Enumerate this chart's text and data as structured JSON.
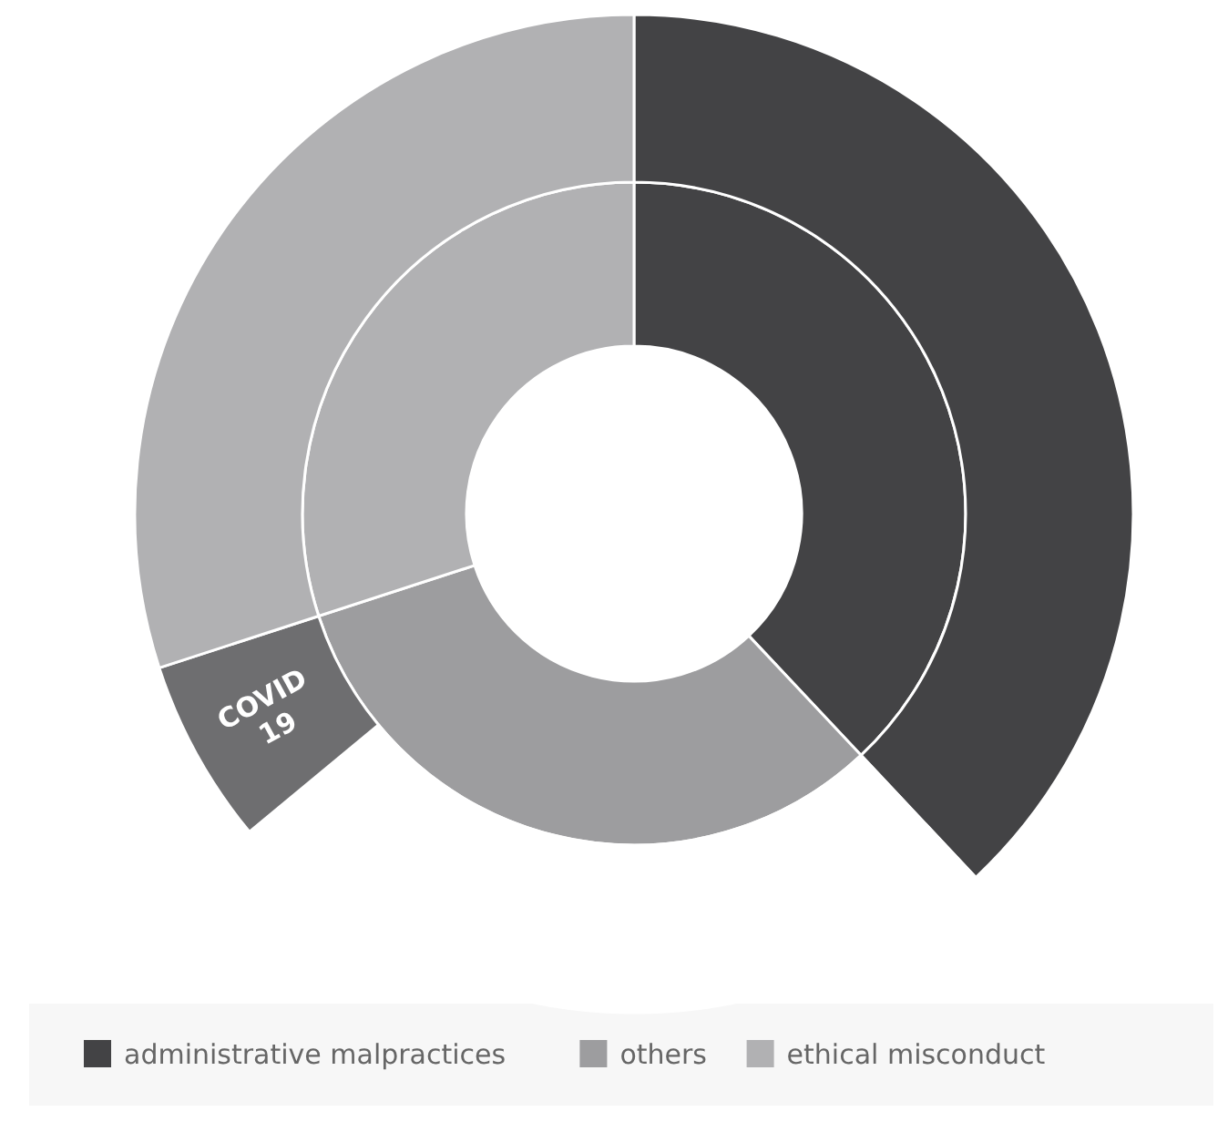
{
  "chart_data": [
    {
      "type": "donut",
      "categories": [
        "administrative malpractices",
        "others",
        "ethical misconduct"
      ],
      "colors": [
        "#434345",
        "#9d9d9f",
        "#b1b1b3"
      ],
      "values": [
        38,
        32,
        30
      ],
      "legend": "bottom"
    },
    {
      "type": "donut",
      "categories": [
        null,
        null,
        "COVID 19",
        null
      ],
      "colors": [
        "#434345",
        "#ffffff",
        "#6e6e70",
        "#b1b1b3"
      ],
      "values": [
        38,
        26,
        6,
        30
      ]
    }
  ]
}
